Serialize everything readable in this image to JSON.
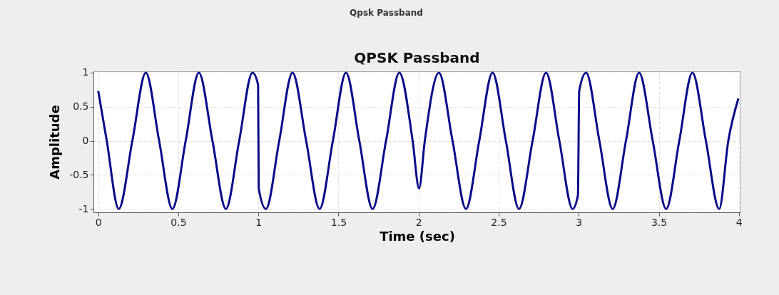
{
  "chart_data": {
    "type": "line",
    "title": "QPSK Passband",
    "xlabel": "Time (sec)",
    "ylabel": "Amplitude",
    "annotations": [
      "Qpsk Passband"
    ],
    "x": [
      0,
      0.053,
      0.128,
      0.213,
      0.297,
      0.38,
      0.463,
      0.546,
      0.628,
      0.713,
      0.797,
      0.88,
      0.963,
      0.998,
      1.002,
      1.047,
      1.13,
      1.213,
      1.298,
      1.382,
      1.465,
      1.547,
      1.63,
      1.713,
      1.797,
      1.88,
      1.963,
      2.003,
      2.039,
      2.127,
      2.212,
      2.296,
      2.379,
      2.462,
      2.545,
      2.627,
      2.712,
      2.796,
      2.879,
      2.962,
      2.995,
      3.003,
      3.046,
      3.129,
      3.212,
      3.295,
      3.377,
      3.462,
      3.546,
      3.628,
      3.71,
      3.794,
      3.877,
      3.934,
      3.997
    ],
    "series": [
      {
        "color": "#0a0a8a",
        "values": [
          0.73,
          0,
          -1,
          0,
          1,
          0,
          -1,
          0,
          1,
          0,
          -1,
          0,
          1,
          0.82,
          -0.7,
          -1,
          0,
          1,
          0,
          -1,
          0,
          1,
          0,
          -1,
          0,
          1,
          0,
          -0.7,
          0,
          1,
          0,
          -1,
          0,
          1,
          0,
          -1,
          0,
          1,
          0,
          -1,
          -0.8,
          0.73,
          1,
          0,
          -1,
          0,
          1,
          0,
          -1,
          0,
          1,
          0,
          -1,
          0,
          0.62
        ]
      }
    ],
    "xlim": [
      -0.03,
      4.01
    ],
    "ylim": [
      -1.05,
      1.02
    ],
    "xticks": [
      0,
      0.5,
      1,
      1.5,
      2,
      2.5,
      3,
      3.5,
      4
    ],
    "yticks": [
      -1,
      -0.5,
      0,
      0.5,
      1
    ],
    "grid": true,
    "marker": "none",
    "line_style": "solid"
  }
}
